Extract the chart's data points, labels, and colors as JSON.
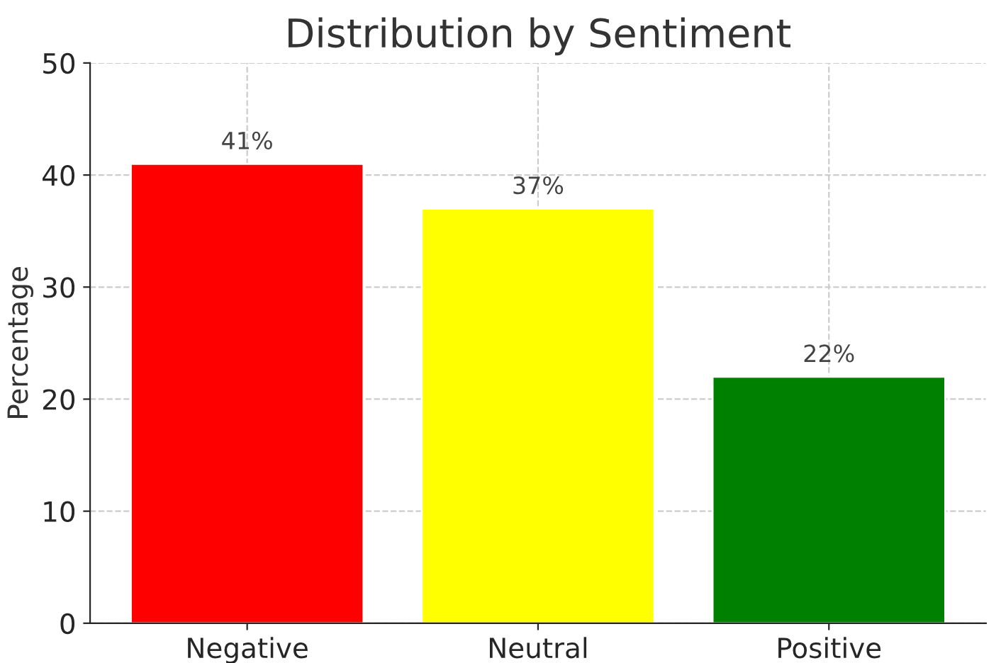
{
  "chart_data": {
    "type": "bar",
    "title": "Distribution by Sentiment",
    "ylabel": "Percentage",
    "categories": [
      "Negative",
      "Neutral",
      "Positive"
    ],
    "values": [
      41,
      37,
      22
    ],
    "colors": [
      "#ff0000",
      "#ffff00",
      "#008000"
    ],
    "value_labels": [
      "41%",
      "37%",
      "22%"
    ],
    "ylim": [
      0,
      50
    ],
    "yticks": [
      0,
      10,
      20,
      30,
      40,
      50
    ],
    "grid": true,
    "line_style": "dashed"
  }
}
